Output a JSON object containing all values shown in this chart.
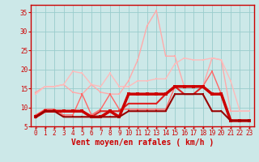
{
  "xlabel": "Vent moyen/en rafales ( km/h )",
  "bg_color": "#cce8e8",
  "grid_color": "#99cccc",
  "axis_color": "#cc0000",
  "text_color": "#cc0000",
  "xlim": [
    -0.5,
    23.5
  ],
  "ylim": [
    5,
    37
  ],
  "yticks": [
    5,
    10,
    15,
    20,
    25,
    30,
    35
  ],
  "xticks": [
    0,
    1,
    2,
    3,
    4,
    5,
    6,
    7,
    8,
    9,
    10,
    11,
    12,
    13,
    14,
    15,
    16,
    17,
    18,
    19,
    20,
    21,
    22,
    23
  ],
  "series": [
    {
      "x": [
        0,
        1,
        2,
        3,
        4,
        5,
        6,
        7,
        8,
        9,
        10,
        11,
        12,
        13,
        14,
        15,
        16,
        17,
        18,
        19,
        20,
        21,
        22,
        23
      ],
      "y": [
        14.0,
        15.5,
        15.5,
        16.0,
        14.0,
        13.5,
        16.0,
        14.0,
        13.5,
        13.5,
        17.0,
        22.5,
        31.5,
        35.5,
        23.5,
        23.5,
        15.5,
        15.5,
        15.5,
        23.0,
        22.5,
        9.0,
        9.0,
        9.0
      ],
      "color": "#ffaaaa",
      "lw": 1.0,
      "marker": "s",
      "ms": 2.0
    },
    {
      "x": [
        0,
        1,
        2,
        3,
        4,
        5,
        6,
        7,
        8,
        9,
        10,
        11,
        12,
        13,
        14,
        15,
        16,
        17,
        18,
        19,
        20,
        21,
        22,
        23
      ],
      "y": [
        13.5,
        15.5,
        15.5,
        16.0,
        19.5,
        19.0,
        16.0,
        15.5,
        19.0,
        15.5,
        15.5,
        17.0,
        17.0,
        17.5,
        17.5,
        21.5,
        23.0,
        22.5,
        22.5,
        23.0,
        22.5,
        17.0,
        9.0,
        9.0
      ],
      "color": "#ffbbbb",
      "lw": 1.0,
      "marker": "s",
      "ms": 2.0
    },
    {
      "x": [
        0,
        1,
        2,
        3,
        4,
        5,
        6,
        7,
        8,
        9,
        10,
        11,
        12,
        13,
        14,
        15,
        16,
        17,
        18,
        19,
        20,
        21,
        22,
        23
      ],
      "y": [
        8.0,
        9.5,
        9.5,
        8.0,
        8.0,
        13.5,
        8.0,
        9.5,
        13.5,
        9.5,
        9.5,
        9.5,
        9.5,
        9.5,
        9.5,
        15.5,
        15.5,
        15.5,
        15.5,
        19.5,
        13.5,
        6.5,
        6.5,
        6.5
      ],
      "color": "#ff6666",
      "lw": 1.0,
      "marker": "s",
      "ms": 2.0
    },
    {
      "x": [
        0,
        1,
        2,
        3,
        4,
        5,
        6,
        7,
        8,
        9,
        10,
        11,
        12,
        13,
        14,
        15,
        16,
        17,
        18,
        19,
        20,
        21,
        22,
        23
      ],
      "y": [
        7.5,
        9.0,
        9.0,
        9.0,
        9.0,
        9.0,
        7.5,
        9.0,
        9.0,
        9.0,
        11.0,
        11.0,
        11.0,
        11.0,
        13.5,
        15.5,
        13.5,
        13.5,
        15.5,
        13.5,
        13.5,
        6.5,
        6.5,
        6.5
      ],
      "color": "#dd2222",
      "lw": 1.5,
      "marker": "s",
      "ms": 2.0
    },
    {
      "x": [
        0,
        1,
        2,
        3,
        4,
        5,
        6,
        7,
        8,
        9,
        10,
        11,
        12,
        13,
        14,
        15,
        16,
        17,
        18,
        19,
        20,
        21,
        22,
        23
      ],
      "y": [
        7.5,
        9.0,
        9.0,
        9.0,
        9.0,
        9.0,
        7.5,
        7.5,
        9.0,
        7.5,
        13.5,
        13.5,
        13.5,
        13.5,
        13.5,
        15.5,
        15.5,
        15.5,
        15.5,
        13.5,
        13.5,
        6.5,
        6.5,
        6.5
      ],
      "color": "#cc0000",
      "lw": 2.5,
      "marker": "s",
      "ms": 2.5
    },
    {
      "x": [
        0,
        1,
        2,
        3,
        4,
        5,
        6,
        7,
        8,
        9,
        10,
        11,
        12,
        13,
        14,
        15,
        16,
        17,
        18,
        19,
        20,
        21,
        22,
        23
      ],
      "y": [
        7.5,
        9.0,
        9.0,
        7.5,
        7.5,
        7.5,
        7.5,
        7.5,
        7.5,
        7.5,
        9.0,
        9.0,
        9.0,
        9.0,
        9.0,
        13.5,
        13.5,
        13.5,
        13.5,
        9.0,
        9.0,
        6.5,
        6.5,
        6.5
      ],
      "color": "#990000",
      "lw": 1.5,
      "marker": "s",
      "ms": 2.0
    }
  ],
  "tick_fontsize": 5.5,
  "label_fontsize": 7
}
